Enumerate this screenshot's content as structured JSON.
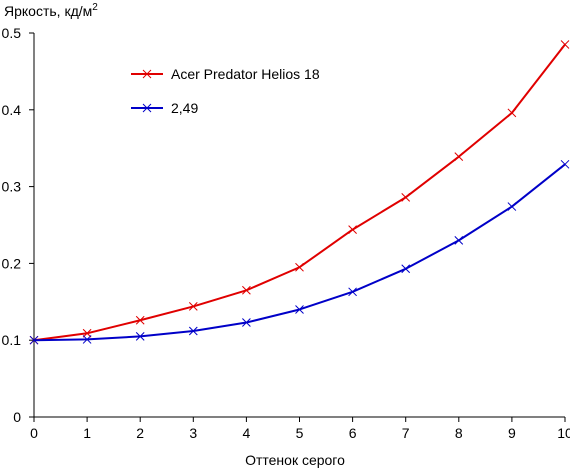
{
  "chart_data": {
    "type": "line",
    "title": "",
    "ylabel": "Яркость, кд/м",
    "ylabel_sup": "2",
    "xlabel": "Оттенок серого",
    "xlim": [
      0,
      10
    ],
    "ylim": [
      0,
      0.5
    ],
    "xticks": [
      "0",
      "1",
      "2",
      "3",
      "4",
      "5",
      "6",
      "7",
      "8",
      "9",
      "10"
    ],
    "yticks": [
      "0",
      "0.1",
      "0.2",
      "0.3",
      "0.4",
      "0.5"
    ],
    "grid": false,
    "legend_position": "top-left",
    "x": [
      0,
      1,
      2,
      3,
      4,
      5,
      6,
      7,
      8,
      9,
      10
    ],
    "series": [
      {
        "name": "Acer Predator Helios 18",
        "color": "#e00000",
        "marker": "x",
        "values": [
          0.1,
          0.109,
          0.126,
          0.144,
          0.165,
          0.195,
          0.244,
          0.286,
          0.339,
          0.396,
          0.485
        ]
      },
      {
        "name": "2,49",
        "color": "#0000c8",
        "marker": "x",
        "values": [
          0.1,
          0.101,
          0.105,
          0.112,
          0.123,
          0.14,
          0.163,
          0.193,
          0.23,
          0.274,
          0.329
        ]
      }
    ]
  }
}
